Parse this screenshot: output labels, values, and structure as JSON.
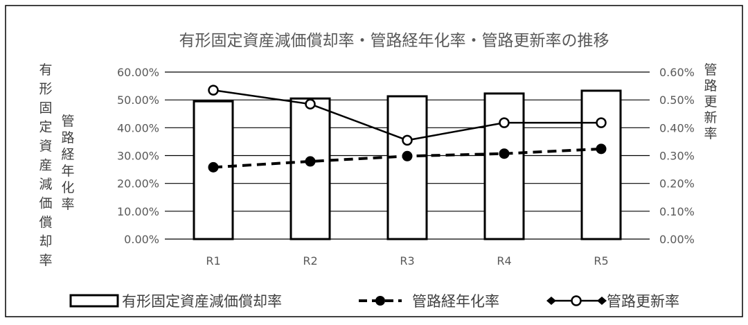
{
  "chart_data": {
    "type": "bar",
    "title": "有形固定資産減価償却率・管路経年化率・管路更新率の推移",
    "categories": [
      "R1",
      "R2",
      "R3",
      "R4",
      "R5"
    ],
    "series": [
      {
        "name": "有形固定資産減価償却率",
        "type": "bar",
        "axis": "left",
        "values": [
          49.5,
          50.5,
          51.3,
          52.3,
          53.3
        ]
      },
      {
        "name": "管路経年化率",
        "type": "line",
        "style": "dashed",
        "marker": "filled-circle",
        "axis": "left",
        "values": [
          25.8,
          27.9,
          29.8,
          30.7,
          32.4
        ]
      },
      {
        "name": "管路更新率",
        "type": "line",
        "style": "solid",
        "marker": "open-circle",
        "axis": "right",
        "values": [
          0.535,
          0.485,
          0.355,
          0.418,
          0.418
        ]
      }
    ],
    "y_left": {
      "label": "有形固定資産減価償却率",
      "label2": "管路経年化率",
      "range": [
        0,
        60
      ],
      "ticks": [
        "0.00%",
        "10.00%",
        "20.00%",
        "30.00%",
        "40.00%",
        "50.00%",
        "60.00%"
      ]
    },
    "y_right": {
      "label": "管路更新率",
      "range": [
        0,
        0.6
      ],
      "ticks": [
        "0.00%",
        "0.10%",
        "0.20%",
        "0.30%",
        "0.40%",
        "0.50%",
        "0.60%"
      ]
    },
    "grid": true,
    "legend_position": "bottom",
    "legend": [
      {
        "label": "有形固定資産減価償却率",
        "symbol": "bar"
      },
      {
        "label": "管路経年化率",
        "symbol": "dashed-line-filled-circle"
      },
      {
        "label": "管路更新率",
        "symbol": "solid-line-open-circle"
      }
    ],
    "colors": {
      "bar_fill": "#ffffff",
      "stroke": "#000000",
      "grid": "#000000",
      "text": "#595959"
    }
  }
}
